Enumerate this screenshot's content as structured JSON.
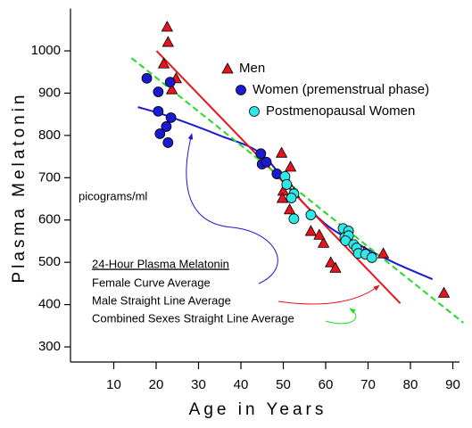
{
  "chart_data": {
    "type": "scatter",
    "xlabel": "Age in Years",
    "ylabel": "Plasma Melatonin",
    "xlim": [
      0,
      92
    ],
    "ylim": [
      260,
      1100
    ],
    "xticks": [
      10,
      20,
      30,
      40,
      50,
      60,
      70,
      80,
      90
    ],
    "yticks": [
      300,
      400,
      500,
      600,
      700,
      800,
      900,
      1000
    ],
    "unit_label": "picograms/ml",
    "lines_title": "24-Hour Plasma Melatonin",
    "series": [
      {
        "name": "Men",
        "marker": "triangle",
        "color": "#e8141c",
        "x": [
          22.6,
          22.8,
          21.8,
          24.7,
          23.7,
          49.6,
          51.7,
          51.0,
          50.0,
          49.8,
          52.5,
          51.5,
          56.5,
          59.5,
          58.5,
          61.2,
          62.3,
          69.2,
          73.6,
          87.9
        ],
        "values": [
          1057,
          1021,
          970,
          935,
          909,
          759,
          726,
          690,
          669,
          652,
          665,
          625,
          574,
          546,
          565,
          500,
          487,
          525,
          521,
          428
        ]
      },
      {
        "name": "Women (premenstrual phase)",
        "marker": "circle",
        "color": "#1a1ad0",
        "x": [
          17.8,
          20.5,
          23.3,
          20.5,
          23.5,
          22.4,
          20.9,
          22.8,
          44.7,
          45.0,
          46.0,
          48.5
        ],
        "values": [
          935,
          903,
          926,
          857,
          842,
          821,
          804,
          783,
          757,
          732,
          737,
          709
        ]
      },
      {
        "name": "Postmenopausal Women",
        "marker": "circle",
        "color": "#2ee8e8",
        "x": [
          50.4,
          50.8,
          52.5,
          51.9,
          52.5,
          56.5,
          64.1,
          65.4,
          64.5,
          65.4,
          64.7,
          66.6,
          67.3,
          67.7,
          69.4,
          70.9
        ],
        "values": [
          703,
          684,
          662,
          652,
          603,
          612,
          580,
          574,
          559,
          563,
          551,
          542,
          534,
          521,
          519,
          511
        ]
      }
    ],
    "lines": [
      {
        "name": "Female Curve Average",
        "color": "#1a1ad0",
        "dashed": false,
        "x": [
          15.7,
          23.0,
          35.0,
          44.7,
          52.5,
          60.0,
          67.3,
          76.0,
          85.2
        ],
        "values": [
          867,
          845,
          800,
          757,
          665,
          590,
          545,
          500,
          460
        ]
      },
      {
        "name": "Male Straight Line Average",
        "color": "#e8141c",
        "dashed": false,
        "x": [
          20.1,
          77.6
        ],
        "values": [
          1000,
          403
        ]
      },
      {
        "name": "Combined Sexes Straight Line Average",
        "color": "#22dd22",
        "dashed": true,
        "x": [
          14.2,
          92.5
        ],
        "values": [
          983,
          357
        ]
      }
    ]
  }
}
